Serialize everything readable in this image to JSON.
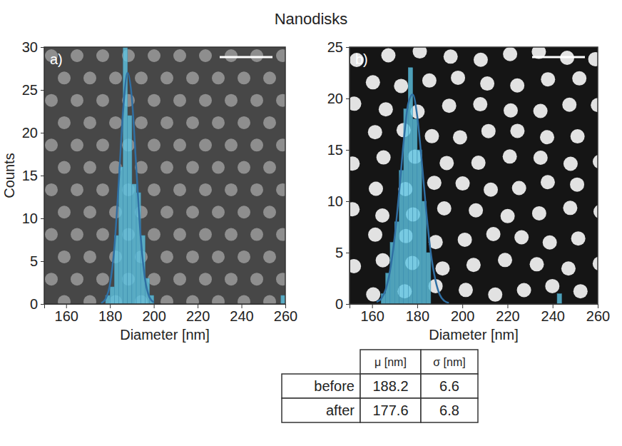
{
  "title": "Nanodisks",
  "chart_data": [
    {
      "type": "histogram",
      "panel": "a)",
      "x_label": "Diameter [nm]",
      "y_label": "Counts",
      "xlim": [
        150,
        260
      ],
      "xticks": [
        160,
        180,
        200,
        220,
        240,
        260
      ],
      "ylim": [
        0,
        30
      ],
      "yticks": [
        0,
        5,
        10,
        15,
        20,
        25,
        30
      ],
      "color": "#5ec4e2",
      "bins": [
        178,
        180,
        182,
        184,
        186,
        188,
        190,
        192,
        194,
        196,
        198,
        200,
        202,
        204,
        206,
        208,
        210,
        212,
        214,
        216,
        218,
        220,
        222,
        224,
        226,
        228,
        230,
        232,
        234,
        236,
        238,
        240,
        242,
        244,
        246,
        248,
        250,
        252,
        254,
        256,
        258,
        260
      ],
      "counts": [
        1,
        2,
        8,
        16,
        30,
        22,
        14,
        13,
        8,
        3,
        1,
        0,
        0,
        0,
        0,
        0,
        0,
        0,
        0,
        0,
        0,
        0,
        0,
        0,
        0,
        0,
        0,
        0,
        0,
        0,
        0,
        0,
        0,
        0,
        0,
        0,
        0,
        0,
        0,
        0,
        1
      ],
      "fit": {
        "color": "#2f6fa3",
        "line_style": "solid",
        "x": [
          176,
          178,
          180,
          182,
          184,
          186,
          188,
          190,
          192,
          194,
          196,
          198,
          200
        ],
        "y": [
          0.1,
          0.6,
          2.3,
          6.6,
          14.2,
          22.6,
          27.0,
          24.0,
          15.9,
          7.9,
          2.9,
          0.8,
          0.2
        ]
      }
    },
    {
      "type": "histogram",
      "panel": "b)",
      "x_label": "Diameter [nm]",
      "xlim": [
        150,
        260
      ],
      "xticks": [
        160,
        180,
        200,
        220,
        240,
        260
      ],
      "ylim": [
        0,
        25
      ],
      "yticks": [
        0,
        5,
        10,
        15,
        20,
        25
      ],
      "color": "#5ec4e2",
      "bins": [
        164,
        166,
        168,
        170,
        172,
        174,
        176,
        178,
        180,
        182,
        184,
        186,
        188,
        190,
        192,
        194,
        196,
        198,
        200,
        202,
        204,
        206,
        208,
        210,
        212,
        214,
        216,
        218,
        220,
        222,
        224,
        226,
        228,
        230,
        232,
        234,
        236,
        238,
        240,
        242,
        244,
        246
      ],
      "counts": [
        1,
        3,
        6,
        8,
        13,
        19,
        23,
        18,
        15,
        10,
        5,
        0,
        0,
        0,
        0,
        0,
        0,
        0,
        0,
        0,
        0,
        0,
        0,
        0,
        0,
        0,
        0,
        0,
        0,
        0,
        0,
        0,
        0,
        0,
        0,
        0,
        0,
        0,
        0,
        1,
        0
      ],
      "fit": {
        "color": "#2f6fa3",
        "line_style": "solid",
        "x": [
          162,
          164,
          166,
          168,
          170,
          172,
          174,
          176,
          178,
          180,
          182,
          184,
          186,
          188,
          190,
          192,
          194
        ],
        "y": [
          0.2,
          0.5,
          1.4,
          3.3,
          6.5,
          10.9,
          15.8,
          19.5,
          20.4,
          18.3,
          13.9,
          9.0,
          5.0,
          2.4,
          0.9,
          0.3,
          0.1
        ]
      }
    }
  ],
  "table": {
    "columns": [
      "μ [nm]",
      "σ [nm]"
    ],
    "rows": [
      {
        "label": "before",
        "values": [
          188.2,
          6.6
        ]
      },
      {
        "label": "after",
        "values": [
          177.6,
          6.8
        ]
      }
    ]
  }
}
